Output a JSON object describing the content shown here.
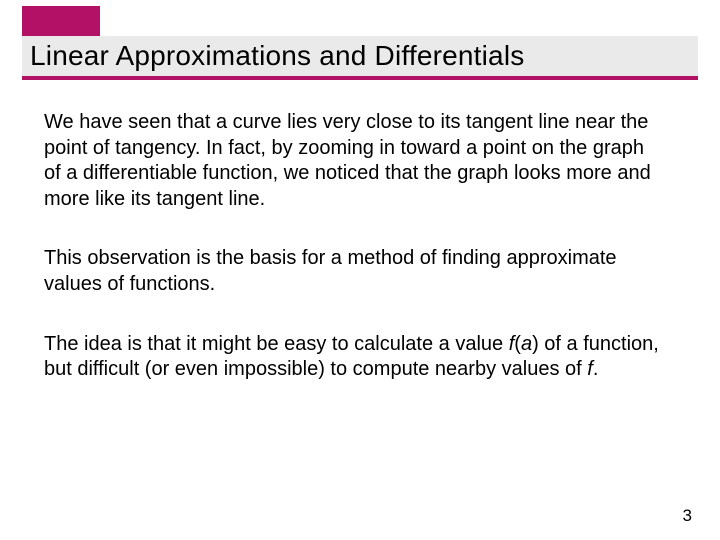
{
  "accent_color": "#b31166",
  "titlebar_bg": "#eaeaea",
  "underline_color": "#b31166",
  "title": "Linear Approximations and Differentials",
  "paragraphs": {
    "p1": "We have seen that a curve lies very close to its tangent line near the point of tangency. In fact, by zooming in toward a point on the graph of a differentiable function, we noticed that the graph looks more and more like its tangent line.",
    "p2": "This observation is the basis for a method of finding approximate values of functions.",
    "p3_a": "The idea is that it might be easy to calculate a value ",
    "p3_f1": "f",
    "p3_b": "(",
    "p3_a1": "a",
    "p3_c": ") of a function, but difficult (or even impossible) to compute nearby values of ",
    "p3_f2": "f",
    "p3_d": "."
  },
  "page_number": "3"
}
